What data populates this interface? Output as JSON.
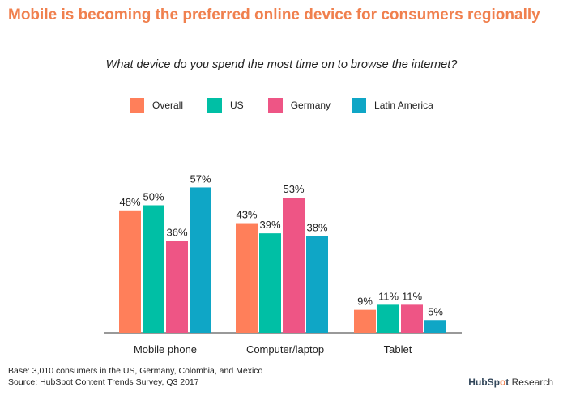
{
  "title": "Mobile is becoming the preferred online device for consumers regionally",
  "subtitle": "What device do you spend the most time on to browse the internet?",
  "footer": {
    "base": "Base: 3,010 consumers in the US, Germany, Colombia, and Mexico",
    "source": "Source: HubSpot Content Trends Survey, Q3 2017"
  },
  "brand": {
    "hub": "HubSp",
    "o": "o",
    "t": "t",
    "research": "Research"
  },
  "chart_data": {
    "type": "bar",
    "title": "Mobile is becoming the preferred online device for consumers regionally",
    "subtitle": "What device do you spend the most time on to browse the internet?",
    "categories": [
      "Mobile phone",
      "Computer/laptop",
      "Tablet"
    ],
    "series": [
      {
        "name": "Overall",
        "color": "#FF7F5A",
        "values": [
          48,
          43,
          9
        ]
      },
      {
        "name": "US",
        "color": "#00BFA5",
        "values": [
          50,
          39,
          11
        ]
      },
      {
        "name": "Germany",
        "color": "#EE5585",
        "values": [
          36,
          53,
          11
        ]
      },
      {
        "name": "Latin America",
        "color": "#0FA6C6",
        "values": [
          57,
          38,
          5
        ]
      }
    ],
    "value_suffix": "%",
    "xlabel": "",
    "ylabel": "",
    "ylim": [
      0,
      60
    ],
    "legend": "top-center",
    "grid": false
  }
}
